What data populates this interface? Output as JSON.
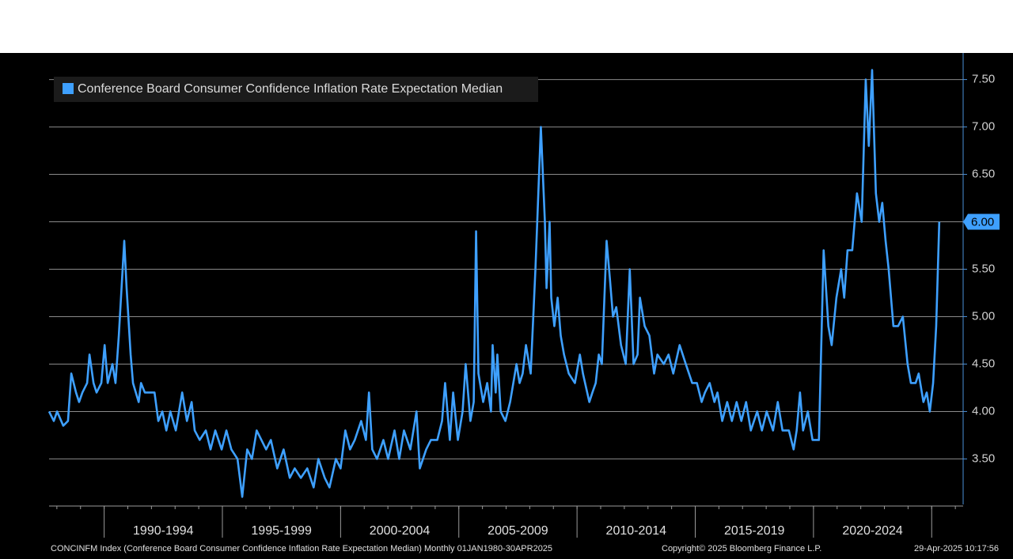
{
  "chart_data": {
    "type": "line",
    "legend": "top-left",
    "grid": true,
    "xlim": [
      1987.67,
      2026.33
    ],
    "ylim": [
      3.02,
      7.78
    ],
    "yticks": [
      {
        "value": 3.5,
        "label": "3.50"
      },
      {
        "value": 4,
        "label": "4.00"
      },
      {
        "value": 4.5,
        "label": "4.50"
      },
      {
        "value": 5,
        "label": "5.00"
      },
      {
        "value": 5.5,
        "label": "5.50"
      },
      {
        "value": 6,
        "label": "6.00"
      },
      {
        "value": 6.5,
        "label": "6.50"
      },
      {
        "value": 7,
        "label": "7.00"
      },
      {
        "value": 7.5,
        "label": "7.50"
      }
    ],
    "xticks": [
      {
        "value": 1990,
        "label": "1990-1994"
      },
      {
        "value": 1995,
        "label": "1995-1999"
      },
      {
        "value": 2000,
        "label": "2000-2004"
      },
      {
        "value": 2005,
        "label": "2005-2009"
      },
      {
        "value": 2010,
        "label": "2010-2014"
      },
      {
        "value": 2015,
        "label": "2015-2019"
      },
      {
        "value": 2020,
        "label": "2020-2024"
      },
      {
        "value": 2025,
        "label": null
      }
    ],
    "last_value_label": "6.00",
    "footer_left": "CONCINFM Index (Conference Board Consumer Confidence Inflation Rate Expectation Median)  Monthly 01JAN1980-30APR2025",
    "footer_center": "Copyright© 2025 Bloomberg Finance L.P.",
    "footer_right": "29-Apr-2025 10:17:56",
    "x": [
      1987.67,
      1987.87,
      1988.01,
      1988.27,
      1988.47,
      1988.61,
      1988.81,
      1988.94,
      1989.08,
      1989.28,
      1989.38,
      1989.55,
      1989.68,
      1989.88,
      1990.02,
      1990.15,
      1990.35,
      1990.48,
      1990.62,
      1990.85,
      1990.95,
      1991.12,
      1991.22,
      1991.46,
      1991.56,
      1991.72,
      1992.13,
      1992.29,
      1992.46,
      1992.63,
      1992.8,
      1993.03,
      1993.3,
      1993.5,
      1993.7,
      1993.83,
      1994.04,
      1994.3,
      1994.5,
      1994.7,
      1994.97,
      1995.17,
      1995.38,
      1995.64,
      1995.84,
      1996.05,
      1996.25,
      1996.45,
      1996.65,
      1996.85,
      1997.05,
      1997.32,
      1997.59,
      1997.85,
      1998.06,
      1998.32,
      1998.59,
      1998.86,
      1999.06,
      1999.33,
      1999.53,
      1999.8,
      2000.0,
      2000.2,
      2000.4,
      2000.6,
      2000.87,
      2001.07,
      2001.2,
      2001.34,
      2001.54,
      2001.81,
      2002.01,
      2002.28,
      2002.48,
      2002.68,
      2002.95,
      2003.21,
      2003.35,
      2003.62,
      2003.82,
      2004.09,
      2004.29,
      2004.42,
      2004.62,
      2004.76,
      2004.96,
      2005.16,
      2005.29,
      2005.49,
      2005.63,
      2005.73,
      2005.83,
      2006.03,
      2006.2,
      2006.36,
      2006.43,
      2006.56,
      2006.63,
      2006.77,
      2006.97,
      2007.17,
      2007.44,
      2007.57,
      2007.7,
      2007.84,
      2008.04,
      2008.24,
      2008.47,
      2008.64,
      2008.71,
      2008.84,
      2008.91,
      2009.04,
      2009.18,
      2009.31,
      2009.45,
      2009.65,
      2009.91,
      2010.12,
      2010.25,
      2010.52,
      2010.65,
      2010.79,
      2010.92,
      2011.05,
      2011.25,
      2011.39,
      2011.52,
      2011.66,
      2011.86,
      2012.06,
      2012.23,
      2012.39,
      2012.56,
      2012.66,
      2012.86,
      2013.06,
      2013.26,
      2013.4,
      2013.67,
      2013.87,
      2014.07,
      2014.34,
      2014.6,
      2014.87,
      2015.07,
      2015.27,
      2015.41,
      2015.61,
      2015.81,
      2015.94,
      2016.14,
      2016.35,
      2016.55,
      2016.75,
      2016.95,
      2017.15,
      2017.35,
      2017.62,
      2017.82,
      2018.02,
      2018.29,
      2018.49,
      2018.69,
      2018.96,
      2019.16,
      2019.29,
      2019.43,
      2019.56,
      2019.76,
      2019.96,
      2020.23,
      2020.43,
      2020.63,
      2020.77,
      2020.97,
      2021.17,
      2021.3,
      2021.44,
      2021.64,
      2021.84,
      2022.04,
      2022.21,
      2022.34,
      2022.48,
      2022.64,
      2022.78,
      2022.91,
      2023.05,
      2023.18,
      2023.38,
      2023.58,
      2023.78,
      2023.98,
      2024.12,
      2024.32,
      2024.45,
      2024.65,
      2024.79,
      2024.92,
      2025.06,
      2025.19,
      2025.32
    ],
    "series": [
      {
        "name": "Conference Board Consumer Confidence Inflation Rate Expectation Median",
        "color": "#3ea0ff",
        "values": [
          4.0,
          3.9,
          4.0,
          3.85,
          3.9,
          4.4,
          4.2,
          4.1,
          4.2,
          4.3,
          4.6,
          4.3,
          4.2,
          4.3,
          4.7,
          4.3,
          4.5,
          4.3,
          4.8,
          5.8,
          5.3,
          4.6,
          4.3,
          4.1,
          4.3,
          4.2,
          4.2,
          3.9,
          4.0,
          3.8,
          4.0,
          3.8,
          4.2,
          3.9,
          4.1,
          3.8,
          3.7,
          3.8,
          3.6,
          3.8,
          3.6,
          3.8,
          3.6,
          3.5,
          3.1,
          3.6,
          3.5,
          3.8,
          3.7,
          3.6,
          3.7,
          3.4,
          3.6,
          3.3,
          3.4,
          3.3,
          3.4,
          3.2,
          3.5,
          3.3,
          3.2,
          3.5,
          3.4,
          3.8,
          3.6,
          3.7,
          3.9,
          3.7,
          4.2,
          3.6,
          3.5,
          3.7,
          3.5,
          3.8,
          3.5,
          3.8,
          3.6,
          4.0,
          3.4,
          3.6,
          3.7,
          3.7,
          3.9,
          4.3,
          3.7,
          4.2,
          3.7,
          4.0,
          4.5,
          3.9,
          4.1,
          5.9,
          4.4,
          4.1,
          4.3,
          4.0,
          4.7,
          4.2,
          4.6,
          4.0,
          3.9,
          4.1,
          4.5,
          4.3,
          4.4,
          4.7,
          4.4,
          5.5,
          7.0,
          6.0,
          5.3,
          6.0,
          5.2,
          4.9,
          5.2,
          4.8,
          4.6,
          4.4,
          4.3,
          4.6,
          4.4,
          4.1,
          4.2,
          4.3,
          4.6,
          4.5,
          5.8,
          5.4,
          5.0,
          5.1,
          4.7,
          4.5,
          5.5,
          4.5,
          4.6,
          5.2,
          4.9,
          4.8,
          4.4,
          4.6,
          4.5,
          4.6,
          4.4,
          4.7,
          4.5,
          4.3,
          4.3,
          4.1,
          4.2,
          4.3,
          4.1,
          4.2,
          3.9,
          4.1,
          3.9,
          4.1,
          3.9,
          4.1,
          3.8,
          4.0,
          3.8,
          4.0,
          3.8,
          4.1,
          3.8,
          3.8,
          3.6,
          3.8,
          4.2,
          3.8,
          4.0,
          3.7,
          3.7,
          5.7,
          4.9,
          4.7,
          5.2,
          5.5,
          5.2,
          5.7,
          5.7,
          6.3,
          6.0,
          7.5,
          6.8,
          7.6,
          6.3,
          6.0,
          6.2,
          5.8,
          5.5,
          4.9,
          4.9,
          5.0,
          4.5,
          4.3,
          4.3,
          4.4,
          4.1,
          4.2,
          4.0,
          4.3,
          4.9,
          6.0
        ]
      }
    ]
  }
}
